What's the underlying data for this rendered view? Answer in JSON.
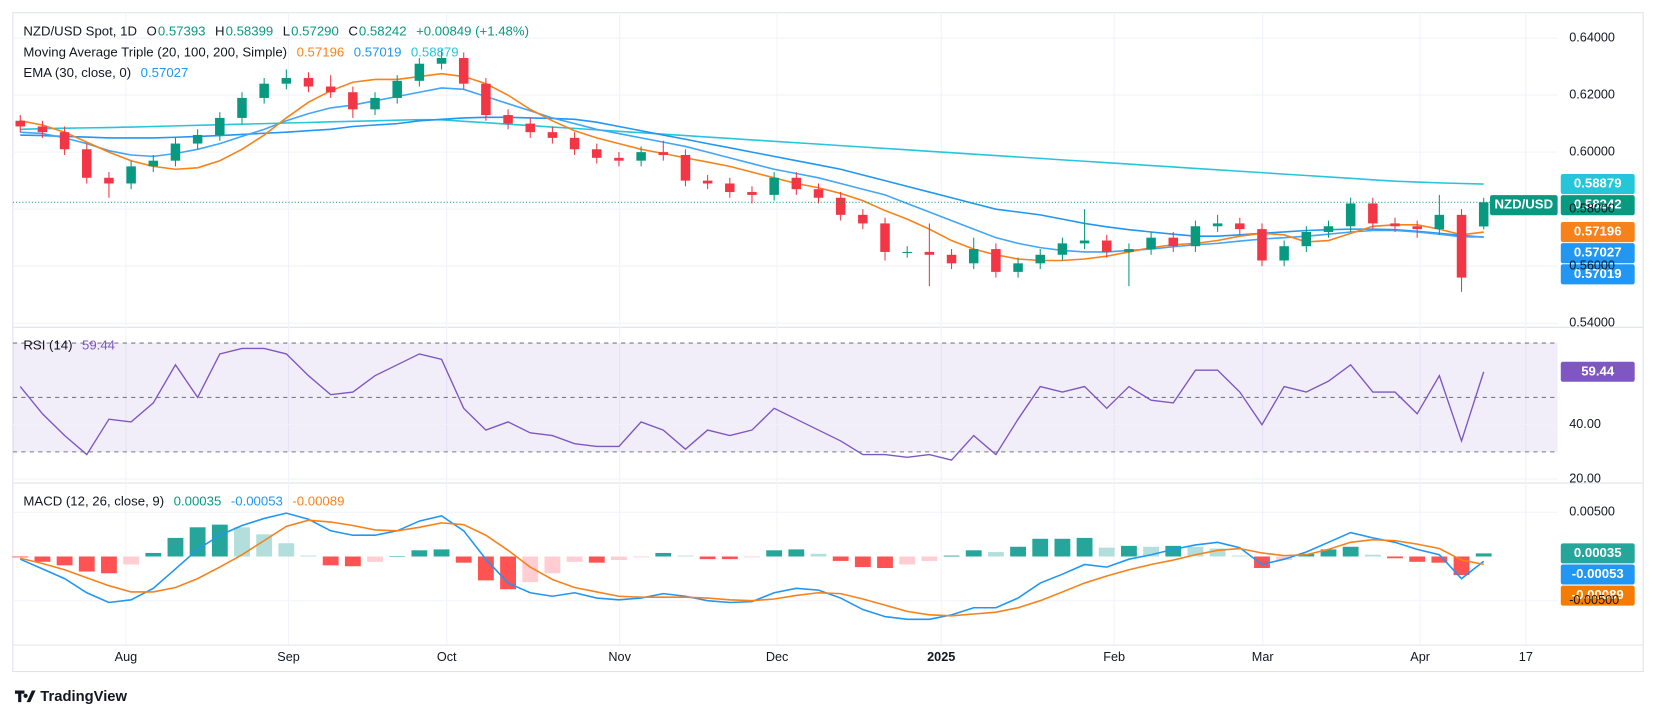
{
  "branding": "TradingView",
  "chart_data": {
    "type": "candlestick",
    "grid": true,
    "up_color": "#089981",
    "down_color": "#f23645",
    "legend": [
      [
        {
          "text": "NZD/USD Spot, 1D"
        },
        {
          "text": "O"
        },
        {
          "text": "0.57393",
          "color": "#089981"
        },
        {
          "text": "H"
        },
        {
          "text": "0.58399",
          "color": "#089981"
        },
        {
          "text": "L"
        },
        {
          "text": "0.57290",
          "color": "#089981"
        },
        {
          "text": "C"
        },
        {
          "text": "0.58242",
          "color": "#089981"
        },
        {
          "text": "+0.00849 (+1.48%)",
          "color": "#089981"
        }
      ],
      [
        {
          "text": "Moving Average Triple (20, 100, 200, Simple)"
        },
        {
          "text": "0.57196",
          "color": "#f7821b"
        },
        {
          "text": "0.57019",
          "color": "#2196f3"
        },
        {
          "text": "0.58879",
          "color": "#26c6da"
        }
      ],
      [
        {
          "text": "EMA (30, close, 0)"
        },
        {
          "text": "0.57027",
          "color": "#2196f3"
        }
      ]
    ],
    "xlim": [
      0,
      209
    ],
    "xticks": [
      {
        "value": 15.3,
        "label": "Aug"
      },
      {
        "value": 37.3,
        "label": "Sep"
      },
      {
        "value": 58.7,
        "label": "Oct"
      },
      {
        "value": 82.1,
        "label": "Nov"
      },
      {
        "value": 103.4,
        "label": "Dec"
      },
      {
        "value": 125.6,
        "label": "2025",
        "bold": true
      },
      {
        "value": 149,
        "label": "Feb"
      },
      {
        "value": 169.1,
        "label": "Mar"
      },
      {
        "value": 190.4,
        "label": "Apr"
      },
      {
        "value": 204.7,
        "label": "17"
      }
    ],
    "ylim": [
      0.5393,
      0.6489
    ],
    "yticks": [
      {
        "value": 0.54,
        "label": "0.54000"
      },
      {
        "value": 0.56,
        "label": "0.56000"
      },
      {
        "value": 0.58,
        "label": "0.58000"
      },
      {
        "value": 0.6,
        "label": "0.60000"
      },
      {
        "value": 0.62,
        "label": "0.62000"
      },
      {
        "value": 0.64,
        "label": "0.64000"
      }
    ],
    "x": [
      1,
      4,
      7,
      10,
      13,
      16,
      19,
      22,
      25,
      28,
      31,
      34,
      37,
      40,
      43,
      46,
      49,
      52,
      55,
      58,
      61,
      64,
      67,
      70,
      73,
      76,
      79,
      82,
      85,
      88,
      91,
      94,
      97,
      100,
      103,
      106,
      109,
      112,
      115,
      118,
      121,
      124,
      127,
      130,
      133,
      136,
      139,
      142,
      145,
      148,
      151,
      154,
      157,
      160,
      163,
      166,
      169,
      172,
      175,
      178,
      181,
      184,
      187,
      190,
      193,
      196,
      199
    ],
    "open": [
      0.611,
      0.609,
      0.607,
      0.601,
      0.591,
      0.589,
      0.595,
      0.597,
      0.603,
      0.606,
      0.612,
      0.619,
      0.624,
      0.626,
      0.623,
      0.621,
      0.615,
      0.619,
      0.625,
      0.631,
      0.633,
      0.624,
      0.613,
      0.61,
      0.607,
      0.605,
      0.601,
      0.598,
      0.597,
      0.6,
      0.599,
      0.59,
      0.589,
      0.586,
      0.585,
      0.591,
      0.587,
      0.584,
      0.578,
      0.575,
      0.565,
      0.565,
      0.564,
      0.561,
      0.566,
      0.558,
      0.561,
      0.564,
      0.568,
      0.569,
      0.565,
      0.566,
      0.57,
      0.567,
      0.574,
      0.575,
      0.573,
      0.562,
      0.567,
      0.572,
      0.574,
      0.582,
      0.575,
      0.574,
      0.573,
      0.578,
      0.57393
    ],
    "high": [
      0.613,
      0.611,
      0.609,
      0.603,
      0.593,
      0.597,
      0.599,
      0.605,
      0.608,
      0.614,
      0.621,
      0.626,
      0.629,
      0.628,
      0.627,
      0.623,
      0.621,
      0.627,
      0.633,
      0.636,
      0.635,
      0.626,
      0.615,
      0.612,
      0.609,
      0.607,
      0.603,
      0.6,
      0.602,
      0.604,
      0.601,
      0.592,
      0.591,
      0.588,
      0.593,
      0.593,
      0.589,
      0.586,
      0.58,
      0.577,
      0.567,
      0.575,
      0.566,
      0.57,
      0.568,
      0.563,
      0.566,
      0.57,
      0.58,
      0.571,
      0.568,
      0.572,
      0.572,
      0.576,
      0.578,
      0.577,
      0.575,
      0.569,
      0.574,
      0.576,
      0.584,
      0.584,
      0.577,
      0.576,
      0.585,
      0.58,
      0.58399
    ],
    "low": [
      0.607,
      0.605,
      0.599,
      0.589,
      0.584,
      0.587,
      0.593,
      0.595,
      0.601,
      0.604,
      0.61,
      0.617,
      0.622,
      0.621,
      0.619,
      0.612,
      0.613,
      0.617,
      0.623,
      0.629,
      0.622,
      0.611,
      0.608,
      0.605,
      0.603,
      0.599,
      0.596,
      0.595,
      0.595,
      0.597,
      0.588,
      0.587,
      0.584,
      0.582,
      0.583,
      0.585,
      0.582,
      0.576,
      0.573,
      0.562,
      0.563,
      0.553,
      0.559,
      0.559,
      0.556,
      0.556,
      0.559,
      0.562,
      0.566,
      0.563,
      0.553,
      0.564,
      0.565,
      0.565,
      0.572,
      0.571,
      0.56,
      0.56,
      0.565,
      0.57,
      0.572,
      0.573,
      0.572,
      0.57,
      0.571,
      0.551,
      0.5729
    ],
    "close": [
      0.609,
      0.607,
      0.601,
      0.591,
      0.589,
      0.595,
      0.597,
      0.603,
      0.606,
      0.612,
      0.619,
      0.624,
      0.626,
      0.623,
      0.621,
      0.615,
      0.619,
      0.625,
      0.631,
      0.633,
      0.624,
      0.613,
      0.61,
      0.607,
      0.605,
      0.601,
      0.598,
      0.597,
      0.6,
      0.599,
      0.59,
      0.589,
      0.586,
      0.585,
      0.591,
      0.587,
      0.584,
      0.578,
      0.575,
      0.565,
      0.565,
      0.564,
      0.561,
      0.566,
      0.558,
      0.561,
      0.564,
      0.568,
      0.569,
      0.565,
      0.566,
      0.57,
      0.567,
      0.574,
      0.575,
      0.573,
      0.562,
      0.567,
      0.572,
      0.574,
      0.582,
      0.575,
      0.574,
      0.573,
      0.578,
      0.556,
      0.58242
    ],
    "series": [
      {
        "color": "#26c6da",
        "values": [
          0.608,
          0.6082,
          0.6084,
          0.6085,
          0.6086,
          0.6088,
          0.609,
          0.6092,
          0.6094,
          0.6096,
          0.6098,
          0.61,
          0.6102,
          0.6104,
          0.6106,
          0.6108,
          0.611,
          0.6112,
          0.6114,
          0.6113,
          0.6108,
          0.6103,
          0.6098,
          0.6093,
          0.6088,
          0.6083,
          0.6078,
          0.6073,
          0.6068,
          0.6063,
          0.6058,
          0.6053,
          0.6048,
          0.6043,
          0.6038,
          0.6033,
          0.6028,
          0.6023,
          0.6018,
          0.6013,
          0.6008,
          0.6003,
          0.5998,
          0.5993,
          0.5988,
          0.5983,
          0.5978,
          0.5973,
          0.5968,
          0.5963,
          0.5958,
          0.5953,
          0.5948,
          0.5943,
          0.5938,
          0.5933,
          0.5928,
          0.5923,
          0.5918,
          0.5913,
          0.5908,
          0.5903,
          0.5898,
          0.5895,
          0.5892,
          0.589,
          0.58879
        ]
      },
      {
        "color": "#2196f3",
        "values": [
          0.606,
          0.6058,
          0.6055,
          0.6053,
          0.605,
          0.605,
          0.605,
          0.6052,
          0.6055,
          0.6058,
          0.6062,
          0.6066,
          0.607,
          0.6075,
          0.608,
          0.609,
          0.6095,
          0.61,
          0.611,
          0.6115,
          0.612,
          0.6122,
          0.6122,
          0.612,
          0.6118,
          0.6115,
          0.6105,
          0.609,
          0.6075,
          0.606,
          0.6045,
          0.603,
          0.6015,
          0.6,
          0.5985,
          0.597,
          0.5955,
          0.594,
          0.592,
          0.59,
          0.588,
          0.586,
          0.584,
          0.582,
          0.58,
          0.579,
          0.578,
          0.5765,
          0.575,
          0.5738,
          0.5728,
          0.572,
          0.5712,
          0.5705,
          0.5705,
          0.571,
          0.5715,
          0.572,
          0.5725,
          0.5728,
          0.573,
          0.573,
          0.5728,
          0.5722,
          0.5715,
          0.5708,
          0.57019
        ]
      },
      {
        "color": "#42a5f5",
        "values": [
          0.607,
          0.6065,
          0.605,
          0.603,
          0.6005,
          0.599,
          0.5985,
          0.5995,
          0.601,
          0.603,
          0.6055,
          0.608,
          0.611,
          0.6135,
          0.6155,
          0.6165,
          0.618,
          0.6195,
          0.621,
          0.6225,
          0.622,
          0.6195,
          0.617,
          0.6145,
          0.612,
          0.61,
          0.608,
          0.6065,
          0.605,
          0.6035,
          0.602,
          0.6,
          0.598,
          0.596,
          0.594,
          0.5925,
          0.591,
          0.589,
          0.587,
          0.585,
          0.582,
          0.579,
          0.576,
          0.573,
          0.57,
          0.568,
          0.5665,
          0.5655,
          0.565,
          0.565,
          0.5655,
          0.566,
          0.5668,
          0.5675,
          0.568,
          0.5688,
          0.5695,
          0.57,
          0.5705,
          0.5712,
          0.572,
          0.5725,
          0.5725,
          0.572,
          0.5712,
          0.5703,
          0.57027
        ]
      },
      {
        "color": "#f7821b",
        "values": [
          0.611,
          0.6095,
          0.607,
          0.6035,
          0.6,
          0.597,
          0.595,
          0.594,
          0.5945,
          0.597,
          0.601,
          0.606,
          0.612,
          0.6175,
          0.6215,
          0.6245,
          0.6255,
          0.6255,
          0.6265,
          0.6275,
          0.6265,
          0.624,
          0.62,
          0.615,
          0.611,
          0.6075,
          0.605,
          0.603,
          0.601,
          0.5995,
          0.598,
          0.5965,
          0.595,
          0.593,
          0.591,
          0.589,
          0.5875,
          0.5855,
          0.583,
          0.5795,
          0.5765,
          0.573,
          0.569,
          0.566,
          0.564,
          0.5625,
          0.562,
          0.562,
          0.5625,
          0.5635,
          0.565,
          0.5665,
          0.5675,
          0.568,
          0.569,
          0.5705,
          0.5715,
          0.571,
          0.5685,
          0.569,
          0.5715,
          0.574,
          0.5745,
          0.5745,
          0.573,
          0.571,
          0.57196
        ]
      }
    ],
    "tags": [
      {
        "label": "0.58879",
        "value": 0.58879,
        "color": "#26c6da"
      },
      {
        "name": "NZD/USD",
        "label": "0.58242",
        "value": 0.58242,
        "color": "#089981"
      },
      {
        "label": "0.57196",
        "value": 0.57196,
        "color": "#f7821b"
      },
      {
        "label": "0.57027",
        "value": 0.57027,
        "color": "#2196f3"
      },
      {
        "label": "0.57019",
        "value": 0.57019,
        "color": "#2196f3"
      }
    ],
    "indicators": [
      {
        "type": "line",
        "legend": [
          [
            {
              "text": "RSI (14)"
            },
            {
              "text": "59.44",
              "color": "#7e57c2"
            }
          ]
        ],
        "ylim": [
          19.5,
          75
        ],
        "yticks": [
          {
            "value": 20,
            "label": "20.00"
          },
          {
            "value": 40,
            "label": "40.00"
          }
        ],
        "levels": [
          30,
          50,
          70
        ],
        "band_color": "#7e57c2",
        "color": "#7e57c2",
        "values": [
          54,
          44,
          36,
          29,
          42,
          41,
          48,
          62,
          50,
          66,
          68,
          68,
          66,
          58,
          51,
          52,
          58,
          62,
          66,
          64,
          46,
          38,
          41,
          37,
          36,
          33,
          32,
          32,
          41,
          38,
          31,
          38,
          36,
          38,
          46,
          42,
          38,
          34,
          29,
          29,
          28,
          29,
          27,
          36,
          29,
          42,
          54,
          52,
          54,
          46,
          54,
          49,
          48,
          60,
          60,
          52,
          40,
          54,
          52,
          56,
          62,
          52,
          52,
          44,
          58,
          34,
          59.44
        ],
        "tags": [
          {
            "label": "59.44",
            "value": 59.44,
            "color": "#7e57c2"
          }
        ]
      },
      {
        "type": "bar",
        "legend": [
          [
            {
              "text": "MACD (12, 26, close, 9)"
            },
            {
              "text": "0.00035",
              "color": "#089981"
            },
            {
              "text": "-0.00053",
              "color": "#2196f3"
            },
            {
              "text": "-0.00089",
              "color": "#f7821b"
            }
          ]
        ],
        "ylim": [
          -0.0099,
          0.008
        ],
        "yticks": [
          {
            "value": 0.005,
            "label": "0.00500"
          },
          {
            "value": -0.005,
            "label": "-0.00500"
          }
        ],
        "up_color": "#26a69a",
        "up_fade": "#b2dfdb",
        "down_color": "#ff5252",
        "down_fade": "#ffcdd2",
        "values": [
          -0.0001,
          -0.0006,
          -0.001,
          -0.0017,
          -0.0019,
          -0.0009,
          0.0004,
          0.0021,
          0.0033,
          0.0036,
          0.0033,
          0.0025,
          0.0015,
          0.0001,
          -0.001,
          -0.0011,
          -0.0006,
          0,
          0.0007,
          0.0008,
          -0.0007,
          -0.0027,
          -0.0037,
          -0.0029,
          -0.0019,
          -0.0006,
          -0.0007,
          -0.0004,
          -0.0001,
          0.0004,
          0.0001,
          -0.0003,
          -0.0003,
          -0.0001,
          0.0007,
          0.0008,
          0.0003,
          -0.0005,
          -0.0012,
          -0.0013,
          -0.0009,
          -0.0005,
          0.0001,
          0.0007,
          0.0005,
          0.0011,
          0.002,
          0.002,
          0.0021,
          0.001,
          0.0012,
          0.0011,
          0.0012,
          0.0011,
          0.0009,
          0.0001,
          -0.0013,
          -0.0004,
          0.0003,
          0.0008,
          0.0011,
          0.0002,
          -0.0002,
          -0.0006,
          -0.0007,
          -0.0021,
          0.00035
        ],
        "series": [
          {
            "color": "#2196f3",
            "values": [
              -0.0003,
              -0.0014,
              -0.0025,
              -0.0041,
              -0.0052,
              -0.0049,
              -0.0036,
              -0.0014,
              0.0008,
              0.0024,
              0.0035,
              0.0043,
              0.0049,
              0.0042,
              0.0029,
              0.0024,
              0.0024,
              0.0029,
              0.004,
              0.0046,
              0.0029,
              -0.0003,
              -0.003,
              -0.0041,
              -0.0045,
              -0.0041,
              -0.0047,
              -0.0049,
              -0.0047,
              -0.0042,
              -0.0045,
              -0.005,
              -0.0052,
              -0.0051,
              -0.0041,
              -0.0036,
              -0.0038,
              -0.0047,
              -0.006,
              -0.0068,
              -0.0071,
              -0.0071,
              -0.0066,
              -0.0058,
              -0.0058,
              -0.0047,
              -0.003,
              -0.002,
              -0.0009,
              -0.0012,
              -0.0003,
              0.0002,
              0.0008,
              0.0013,
              0.0016,
              0.001,
              -0.0009,
              -0.0003,
              0.0005,
              0.0016,
              0.0027,
              0.0021,
              0.0016,
              0.0008,
              0.0002,
              -0.0025,
              -0.00053
            ]
          },
          {
            "color": "#f7821b",
            "values": [
              -0.0002,
              -0.0008,
              -0.0015,
              -0.0024,
              -0.0033,
              -0.004,
              -0.004,
              -0.0035,
              -0.0025,
              -0.0012,
              0.0002,
              0.0018,
              0.0034,
              0.0041,
              0.0039,
              0.0035,
              0.003,
              0.0029,
              0.0033,
              0.0038,
              0.0036,
              0.0024,
              0.0007,
              -0.0012,
              -0.0026,
              -0.0035,
              -0.004,
              -0.0045,
              -0.0046,
              -0.0046,
              -0.0046,
              -0.0047,
              -0.0049,
              -0.005,
              -0.0048,
              -0.0044,
              -0.0041,
              -0.0042,
              -0.0048,
              -0.0055,
              -0.0062,
              -0.0066,
              -0.0067,
              -0.0065,
              -0.0063,
              -0.0058,
              -0.005,
              -0.004,
              -0.003,
              -0.0022,
              -0.0015,
              -0.0009,
              -0.0004,
              0.0002,
              0.0007,
              0.0009,
              0.0004,
              0.0001,
              0.0002,
              0.0008,
              0.0016,
              0.0019,
              0.0018,
              0.0014,
              0.0009,
              -0.0004,
              -0.00089
            ]
          }
        ],
        "tags": [
          {
            "label": "0.00035",
            "value": 0.00035,
            "color": "#26a69a"
          },
          {
            "label": "-0.00053",
            "value": -0.00053,
            "color": "#2196f3"
          },
          {
            "label": "-0.00089",
            "value": -0.00089,
            "color": "#f57c00"
          }
        ]
      }
    ]
  }
}
